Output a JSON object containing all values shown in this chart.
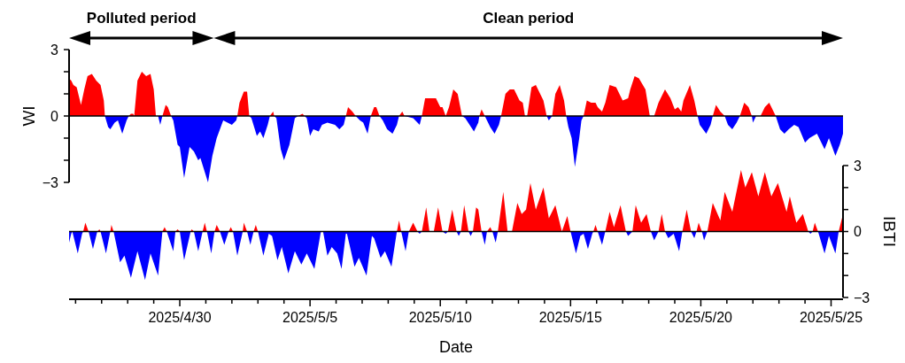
{
  "chart_data": [
    {
      "type": "area",
      "ylabel": "WI",
      "annotations": [
        "Polluted period",
        "Clean period"
      ],
      "tick_labels": "y",
      "xlim": [
        "2025-04-25T18:00",
        "2025-05-25T11:00"
      ],
      "ylim": [
        -3,
        3
      ],
      "yticks": [
        {
          "value": -3,
          "label": "−3"
        },
        {
          "value": -2,
          "label": null
        },
        {
          "value": -1,
          "label": null
        },
        0,
        {
          "value": 1,
          "label": null
        },
        {
          "value": 2,
          "label": null
        },
        3
      ],
      "x": [
        "2025-04-25T18:00",
        "2025-04-25T20:00",
        "2025-04-25T22:00",
        "2025-04-26T01:00",
        "2025-04-26T05:00",
        "2025-04-26T08:00",
        "2025-04-26T11:00",
        "2025-04-26T15:00",
        "2025-04-26T19:00",
        "2025-04-26T23:00",
        "2025-04-27T02:00",
        "2025-04-27T03:00",
        "2025-04-27T06:00",
        "2025-04-27T08:00",
        "2025-04-27T12:00",
        "2025-04-27T15:00",
        "2025-04-27T19:00",
        "2025-04-27T23:00",
        "2025-04-28T01:00",
        "2025-04-28T03:00",
        "2025-04-28T05:00",
        "2025-04-28T06:00",
        "2025-04-28T09:00",
        "2025-04-28T13:00",
        "2025-04-28T17:00",
        "2025-04-28T21:00",
        "2025-04-29T00:00",
        "2025-04-29T02:00",
        "2025-04-29T04:00",
        "2025-04-29T06:00",
        "2025-04-29T08:00",
        "2025-04-29T11:00",
        "2025-04-29T13:00",
        "2025-04-29T16:00",
        "2025-04-29T18:00",
        "2025-04-29T22:00",
        "2025-04-30T00:00",
        "2025-04-30T04:00",
        "2025-04-30T09:00",
        "2025-04-30T13:00",
        "2025-04-30T17:00",
        "2025-04-30T19:00",
        "2025-05-01T02:00",
        "2025-05-01T06:00",
        "2025-05-01T10:00",
        "2025-05-01T16:00",
        "2025-05-01T20:00",
        "2025-05-02T00:00",
        "2025-05-02T04:00",
        "2025-05-02T05:00",
        "2025-05-02T07:00",
        "2025-05-02T11:00",
        "2025-05-02T14:00",
        "2025-05-02T16:00",
        "2025-05-02T18:00",
        "2025-05-02T23:00",
        "2025-05-03T02:00",
        "2025-05-03T05:00",
        "2025-05-03T09:00",
        "2025-05-03T11:00",
        "2025-05-03T14:00",
        "2025-05-03T15:00",
        "2025-05-03T17:00",
        "2025-05-03T21:00",
        "2025-05-04T00:00",
        "2025-05-04T05:00",
        "2025-05-04T10:00",
        "2025-05-04T13:00",
        "2025-05-04T17:00",
        "2025-05-04T19:00",
        "2025-05-04T21:00",
        "2025-05-05T00:00",
        "2025-05-05T03:00",
        "2025-05-05T08:00",
        "2025-05-05T11:00",
        "2025-05-05T16:00",
        "2025-05-05T23:00",
        "2025-05-06T03:00",
        "2025-05-06T07:00",
        "2025-05-06T09:00",
        "2025-05-06T11:00",
        "2025-05-06T15:00",
        "2025-05-06T18:00",
        "2025-05-06T22:00",
        "2025-05-07T01:00",
        "2025-05-07T05:00",
        "2025-05-07T08:00",
        "2025-05-07T11:00",
        "2025-05-07T13:00",
        "2025-05-07T16:00",
        "2025-05-07T19:00",
        "2025-05-07T23:00",
        "2025-05-08T04:00",
        "2025-05-08T08:00",
        "2025-05-08T10:00",
        "2025-05-08T13:00",
        "2025-05-08T15:00",
        "2025-05-08T23:00",
        "2025-05-09T05:00",
        "2025-05-09T07:00",
        "2025-05-09T10:00",
        "2025-05-09T14:00",
        "2025-05-09T20:00",
        "2025-05-10T00:00",
        "2025-05-10T02:00",
        "2025-05-10T05:00",
        "2025-05-10T08:00",
        "2025-05-10T12:00",
        "2025-05-10T16:00",
        "2025-05-10T20:00",
        "2025-05-10T23:00",
        "2025-05-11T03:00",
        "2025-05-11T07:00",
        "2025-05-11T11:00",
        "2025-05-11T12:00",
        "2025-05-11T14:00",
        "2025-05-11T17:00",
        "2025-05-11T22:00",
        "2025-05-12T02:00",
        "2025-05-12T06:00",
        "2025-05-12T08:00",
        "2025-05-12T12:00",
        "2025-05-12T16:00",
        "2025-05-12T20:00",
        "2025-05-13T01:00",
        "2025-05-13T04:00",
        "2025-05-13T06:00",
        "2025-05-13T08:00",
        "2025-05-13T12:00",
        "2025-05-13T16:00",
        "2025-05-13T23:00",
        "2025-05-14T02:00",
        "2025-05-14T04:00",
        "2025-05-14T07:00",
        "2025-05-14T10:00",
        "2025-05-14T14:00",
        "2025-05-14T18:00",
        "2025-05-14T20:00",
        "2025-05-14T22:00",
        "2025-05-15T01:00",
        "2025-05-15T04:00",
        "2025-05-15T08:00",
        "2025-05-15T10:00",
        "2025-05-15T12:00",
        "2025-05-15T15:00",
        "2025-05-15T19:00",
        "2025-05-15T23:00",
        "2025-05-16T01:00",
        "2025-05-16T05:00",
        "2025-05-16T08:00",
        "2025-05-16T12:00",
        "2025-05-16T18:00",
        "2025-05-16T22:00",
        "2025-05-17T00:00",
        "2025-05-17T05:00",
        "2025-05-17T07:00",
        "2025-05-17T11:00",
        "2025-05-17T15:00",
        "2025-05-17T21:00",
        "2025-05-18T00:00",
        "2025-05-18T01:00",
        "2025-05-18T05:00",
        "2025-05-18T09:00",
        "2025-05-18T15:00",
        "2025-05-18T20:00",
        "2025-05-19T00:00",
        "2025-05-19T03:00",
        "2025-05-19T06:00",
        "2025-05-19T08:00",
        "2025-05-19T14:00",
        "2025-05-19T18:00",
        "2025-05-19T21:00",
        "2025-05-19T23:00",
        "2025-05-20T05:00",
        "2025-05-20T09:00",
        "2025-05-20T11:00",
        "2025-05-20T14:00",
        "2025-05-20T18:00",
        "2025-05-20T22:00",
        "2025-05-21T01:00",
        "2025-05-21T05:00",
        "2025-05-21T09:00",
        "2025-05-21T12:00",
        "2025-05-21T16:00",
        "2025-05-21T20:00",
        "2025-05-21T23:00",
        "2025-05-22T00:00",
        "2025-05-22T03:00",
        "2025-05-22T07:00",
        "2025-05-22T11:00",
        "2025-05-22T15:00",
        "2025-05-22T19:00",
        "2025-05-22T21:00",
        "2025-05-23T01:00",
        "2025-05-23T05:00",
        "2025-05-23T09:00",
        "2025-05-23T14:00",
        "2025-05-23T18:00",
        "2025-05-24T00:00",
        "2025-05-24T04:00",
        "2025-05-24T11:00",
        "2025-05-24T18:00",
        "2025-05-24T22:00",
        "2025-05-25T04:00",
        "2025-05-25T08:00",
        "2025-05-25T11:00"
      ],
      "series": [
        {
          "color": "#ff0000",
          "values": [
            1.7,
            1.6,
            1.4,
            1.3,
            0.5,
            1.2,
            1.8,
            1.9,
            1.6,
            1.4,
            0.7,
            0,
            0,
            0,
            0,
            0,
            0,
            0,
            0,
            0.1,
            0.1,
            0,
            1.6,
            2.0,
            1.8,
            1.9,
            1.2,
            0,
            0,
            0,
            0,
            0.5,
            0.4,
            0,
            0,
            0,
            0,
            0,
            0,
            0,
            0,
            0,
            0,
            0,
            0,
            0,
            0,
            0,
            0,
            0,
            0.6,
            1.1,
            1.1,
            0,
            0,
            0,
            0,
            0,
            0,
            0,
            0.2,
            0,
            0,
            0,
            0,
            0,
            0,
            0,
            0.1,
            0,
            0,
            0,
            0,
            0,
            0,
            0,
            0,
            0,
            0,
            0,
            0.4,
            0.2,
            0,
            0,
            0,
            0,
            0,
            0.4,
            0.4,
            0,
            0,
            0,
            0,
            0,
            0,
            0.2,
            0,
            0,
            0,
            0,
            0.8,
            0.8,
            0.8,
            0.4,
            0.4,
            0,
            0.4,
            1.2,
            1.0,
            0,
            0,
            0,
            0,
            0,
            0,
            0.3,
            0,
            0,
            0,
            0,
            0,
            1.0,
            1.2,
            1.2,
            0.7,
            0.6,
            0,
            0,
            1.3,
            1.4,
            0.7,
            0,
            0,
            0,
            1.0,
            1.4,
            0.7,
            0,
            0,
            0,
            0,
            0,
            0,
            0,
            0.7,
            0.6,
            0.6,
            0.4,
            0.2,
            0.6,
            1.4,
            1.3,
            0.9,
            0.7,
            0.8,
            1.2,
            1.8,
            1.7,
            1.2,
            0.3,
            0,
            0,
            0.6,
            1.2,
            0.8,
            0.3,
            0.4,
            0.2,
            0.7,
            1.4,
            0.7,
            0,
            0,
            0,
            0,
            0,
            0.5,
            0.2,
            0,
            0,
            0,
            0,
            0,
            0.6,
            0.4,
            0,
            0,
            0,
            0,
            0.4,
            0.6,
            0.2,
            0,
            0,
            0,
            0,
            0,
            0,
            0,
            0,
            0,
            0,
            0,
            0,
            0,
            0
          ]
        },
        {
          "color": "#0000ff",
          "values": [
            0,
            0,
            0,
            0,
            0,
            0,
            0,
            0,
            0,
            0,
            0,
            0,
            -0.5,
            -0.6,
            -0.3,
            -0.2,
            -0.8,
            -0.2,
            0,
            0,
            0,
            0,
            0,
            0,
            0,
            0,
            0,
            0,
            0,
            -0.4,
            0,
            0,
            0,
            0,
            -0.2,
            -1.3,
            -1.4,
            -2.8,
            -1.4,
            -1.6,
            -2.0,
            -1.9,
            -3.0,
            -1.8,
            -1.0,
            -0.2,
            -0.3,
            -0.4,
            -0.2,
            0,
            0,
            0,
            0,
            0,
            -0.1,
            -0.9,
            -0.7,
            -1.0,
            -0.4,
            0,
            0,
            0,
            -0.1,
            -1.5,
            -2.0,
            -1.3,
            -0.1,
            0,
            0,
            0,
            -0.1,
            -0.9,
            -0.6,
            -0.7,
            -0.4,
            -0.3,
            -0.4,
            -0.6,
            -0.4,
            0,
            0,
            0,
            0,
            -0.2,
            -0.3,
            -0.8,
            0,
            0,
            0,
            0,
            -0.2,
            -0.6,
            -0.8,
            -0.4,
            0,
            0,
            0,
            -0.1,
            -0.4,
            0,
            0,
            0,
            0,
            0,
            0,
            0,
            0,
            0,
            0,
            0,
            -0.1,
            -0.4,
            -0.7,
            -0.3,
            0,
            0,
            0,
            -0.5,
            -0.8,
            -0.4,
            0,
            0,
            0,
            0,
            0,
            0,
            0,
            0,
            0,
            0,
            0,
            0,
            -0.2,
            0,
            0,
            0,
            0,
            0,
            -0.5,
            -1.0,
            -2.3,
            -1.0,
            -0.2,
            0,
            0,
            0,
            0,
            0,
            0,
            0,
            0,
            0,
            0,
            0,
            0,
            0,
            0,
            0,
            0,
            0,
            0,
            0,
            0,
            0,
            0,
            0,
            0,
            0,
            0,
            0,
            0,
            0,
            -0.4,
            -0.8,
            -0.4,
            0,
            0,
            0,
            0,
            -0.4,
            -0.6,
            -0.3,
            0,
            0,
            0,
            0,
            -0.3,
            0,
            0,
            0,
            0,
            0,
            0,
            -0.6,
            -0.8,
            -0.6,
            -0.4,
            -0.5,
            -1.2,
            -1.0,
            -0.8,
            -1.5,
            -1.0,
            -1.8,
            -1.3,
            -0.8
          ]
        }
      ]
    },
    {
      "type": "area",
      "y2label": "IBTI",
      "xlabel": "Date",
      "xlim": [
        "2025-04-25T18:00",
        "2025-05-25T11:00"
      ],
      "xticks": [
        {
          "value": "2025-04-26",
          "label": null
        },
        {
          "value": "2025-04-27",
          "label": null
        },
        {
          "value": "2025-04-28",
          "label": null
        },
        {
          "value": "2025-04-29",
          "label": null
        },
        {
          "value": "2025-04-30",
          "label": "2025/4/30"
        },
        {
          "value": "2025-05-01",
          "label": null
        },
        {
          "value": "2025-05-02",
          "label": null
        },
        {
          "value": "2025-05-03",
          "label": null
        },
        {
          "value": "2025-05-04",
          "label": null
        },
        {
          "value": "2025-05-05",
          "label": "2025/5/5"
        },
        {
          "value": "2025-05-06",
          "label": null
        },
        {
          "value": "2025-05-07",
          "label": null
        },
        {
          "value": "2025-05-08",
          "label": null
        },
        {
          "value": "2025-05-09",
          "label": null
        },
        {
          "value": "2025-05-10",
          "label": "2025/5/10"
        },
        {
          "value": "2025-05-11",
          "label": null
        },
        {
          "value": "2025-05-12",
          "label": null
        },
        {
          "value": "2025-05-13",
          "label": null
        },
        {
          "value": "2025-05-14",
          "label": null
        },
        {
          "value": "2025-05-15",
          "label": "2025/5/15"
        },
        {
          "value": "2025-05-16",
          "label": null
        },
        {
          "value": "2025-05-17",
          "label": null
        },
        {
          "value": "2025-05-18",
          "label": null
        },
        {
          "value": "2025-05-19",
          "label": null
        },
        {
          "value": "2025-05-20",
          "label": "2025/5/20"
        },
        {
          "value": "2025-05-21",
          "label": null
        },
        {
          "value": "2025-05-22",
          "label": null
        },
        {
          "value": "2025-05-23",
          "label": null
        },
        {
          "value": "2025-05-24",
          "label": null
        },
        {
          "value": "2025-05-25",
          "label": "2025/5/25"
        }
      ],
      "y2lim": [
        -3,
        3
      ],
      "y2ticks": [
        {
          "value": -3,
          "label": "−3"
        },
        {
          "value": -2,
          "label": null
        },
        {
          "value": -1,
          "label": null
        },
        0,
        {
          "value": 1,
          "label": null
        },
        {
          "value": 2,
          "label": null
        },
        3
      ],
      "x": [
        "2025-04-25T18:00",
        "2025-04-25T20:00",
        "2025-04-25T21:00",
        "2025-04-26T02:00",
        "2025-04-26T06:00",
        "2025-04-26T07:00",
        "2025-04-26T09:00",
        "2025-04-26T12:00",
        "2025-04-26T16:00",
        "2025-04-26T20:00",
        "2025-04-26T22:00",
        "2025-04-26T23:00",
        "2025-04-27T04:00",
        "2025-04-27T08:00",
        "2025-04-27T09:00",
        "2025-04-27T11:00",
        "2025-04-27T17:00",
        "2025-04-27T21:00",
        "2025-04-28T03:00",
        "2025-04-28T09:00",
        "2025-04-28T16:00",
        "2025-04-28T21:00",
        "2025-04-29T04:00",
        "2025-04-29T08:00",
        "2025-04-29T10:00",
        "2025-04-29T12:00",
        "2025-04-29T18:00",
        "2025-04-29T20:00",
        "2025-04-29T22:00",
        "2025-04-30T00:00",
        "2025-04-30T04:00",
        "2025-04-30T10:00",
        "2025-04-30T11:00",
        "2025-04-30T13:00",
        "2025-04-30T17:00",
        "2025-04-30T21:00",
        "2025-04-30T23:00",
        "2025-05-01T01:00",
        "2025-05-01T05:00",
        "2025-05-01T08:00",
        "2025-05-01T10:00",
        "2025-05-01T13:00",
        "2025-05-01T17:00",
        "2025-05-01T21:00",
        "2025-05-01T23:00",
        "2025-05-02T01:00",
        "2025-05-02T05:00",
        "2025-05-02T10:00",
        "2025-05-02T11:00",
        "2025-05-02T14:00",
        "2025-05-02T17:00",
        "2025-05-02T20:00",
        "2025-05-02T22:00",
        "2025-05-03T00:00",
        "2025-05-03T05:00",
        "2025-05-03T10:00",
        "2025-05-03T13:00",
        "2025-05-03T18:00",
        "2025-05-03T22:00",
        "2025-05-04T04:00",
        "2025-05-04T10:00",
        "2025-05-04T16:00",
        "2025-05-04T21:00",
        "2025-05-05T04:00",
        "2025-05-05T10:00",
        "2025-05-05T12:00",
        "2025-05-05T16:00",
        "2025-05-05T20:00",
        "2025-05-06T01:00",
        "2025-05-06T05:00",
        "2025-05-06T09:00",
        "2025-05-06T10:00",
        "2025-05-06T17:00",
        "2025-05-06T21:00",
        "2025-05-07T04:00",
        "2025-05-07T09:00",
        "2025-05-07T11:00",
        "2025-05-07T17:00",
        "2025-05-07T21:00",
        "2025-05-08T03:00",
        "2025-05-08T08:00",
        "2025-05-08T10:00",
        "2025-05-08T12:00",
        "2025-05-08T16:00",
        "2025-05-08T19:00",
        "2025-05-08T23:00",
        "2025-05-09T02:00",
        "2025-05-09T03:00",
        "2025-05-09T05:00",
        "2025-05-09T07:00",
        "2025-05-09T11:00",
        "2025-05-09T14:00",
        "2025-05-09T18:00",
        "2025-05-09T22:00",
        "2025-05-10T02:00",
        "2025-05-10T05:00",
        "2025-05-10T07:00",
        "2025-05-10T11:00",
        "2025-05-10T15:00",
        "2025-05-10T17:00",
        "2025-05-10T19:00",
        "2025-05-10T22:00",
        "2025-05-11T02:00",
        "2025-05-11T04:00",
        "2025-05-11T06:00",
        "2025-05-11T09:00",
        "2025-05-11T11:00",
        "2025-05-11T14:00",
        "2025-05-11T17:00",
        "2025-05-11T19:00",
        "2025-05-11T22:00",
        "2025-05-12T00:00",
        "2025-05-12T03:00",
        "2025-05-12T05:00",
        "2025-05-12T10:00",
        "2025-05-12T14:00",
        "2025-05-12T18:00",
        "2025-05-12T23:00",
        "2025-05-13T03:00",
        "2025-05-13T07:00",
        "2025-05-13T11:00",
        "2025-05-13T16:00",
        "2025-05-13T23:00",
        "2025-05-14T04:00",
        "2025-05-14T10:00",
        "2025-05-14T16:00",
        "2025-05-14T21:00",
        "2025-05-15T00:00",
        "2025-05-15T05:00",
        "2025-05-15T09:00",
        "2025-05-15T12:00",
        "2025-05-15T16:00",
        "2025-05-15T20:00",
        "2025-05-15T21:00",
        "2025-05-15T23:00",
        "2025-05-16T01:00",
        "2025-05-16T05:00",
        "2025-05-16T08:00",
        "2025-05-16T12:00",
        "2025-05-16T16:00",
        "2025-05-16T22:00",
        "2025-05-17T03:00",
        "2025-05-17T05:00",
        "2025-05-17T09:00",
        "2025-05-17T12:00",
        "2025-05-17T17:00",
        "2025-05-17T22:00",
        "2025-05-18T02:00",
        "2025-05-18T05:00",
        "2025-05-18T09:00",
        "2025-05-18T12:00",
        "2025-05-18T15:00",
        "2025-05-18T18:00",
        "2025-05-18T23:00",
        "2025-05-19T04:00",
        "2025-05-19T07:00",
        "2025-05-19T11:00",
        "2025-05-19T15:00",
        "2025-05-19T18:00",
        "2025-05-19T20:00",
        "2025-05-19T22:00",
        "2025-05-20T01:00",
        "2025-05-20T03:00",
        "2025-05-20T06:00",
        "2025-05-20T11:00",
        "2025-05-20T18:00",
        "2025-05-20T22:00",
        "2025-05-21T05:00",
        "2025-05-21T13:00",
        "2025-05-21T17:00",
        "2025-05-21T23:00",
        "2025-05-22T05:00",
        "2025-05-22T11:00",
        "2025-05-22T17:00",
        "2025-05-22T23:00",
        "2025-05-23T07:00",
        "2025-05-23T10:00",
        "2025-05-23T16:00",
        "2025-05-23T22:00",
        "2025-05-24T03:00",
        "2025-05-24T05:00",
        "2025-05-24T07:00",
        "2025-05-24T09:00",
        "2025-05-24T12:00",
        "2025-05-24T18:00",
        "2025-05-24T22:00",
        "2025-05-25T04:00",
        "2025-05-25T07:00",
        "2025-05-25T11:00"
      ],
      "series": [
        {
          "color": "#ff0000",
          "axis": "y2",
          "values": [
            0,
            0,
            0,
            0,
            0,
            0,
            0.4,
            0,
            0,
            0,
            0.1,
            0,
            0,
            0,
            0.3,
            0,
            0,
            0,
            0,
            0,
            0,
            0,
            0,
            0,
            0.2,
            0,
            0,
            0,
            0.1,
            0,
            0,
            0,
            0.1,
            0,
            0,
            0,
            0.4,
            0,
            0,
            0,
            0.3,
            0,
            0,
            0,
            0.2,
            0,
            0,
            0,
            0.4,
            0,
            0,
            0,
            0.3,
            0,
            0,
            0,
            0,
            0,
            0,
            0,
            0,
            0,
            0,
            0,
            0,
            0,
            0,
            0,
            0,
            0,
            0,
            0,
            0,
            0,
            0,
            0,
            0,
            0,
            0,
            0,
            0,
            0.5,
            0,
            0,
            0,
            0.4,
            0.1,
            0,
            0,
            0,
            1.1,
            0,
            0,
            1.1,
            0,
            0,
            0,
            1.0,
            0,
            0,
            0,
            1.2,
            0,
            0,
            0,
            1.1,
            1.0,
            0,
            0,
            0,
            0.2,
            0,
            0,
            0,
            1.8,
            0,
            0,
            1.3,
            0.8,
            1.0,
            2.2,
            1.0,
            2.0,
            0.6,
            1.2,
            0,
            0.7,
            0,
            0,
            0,
            0,
            0,
            0,
            0,
            0.3,
            0,
            0,
            0,
            0.9,
            0.2,
            1.2,
            0,
            0,
            0,
            1.2,
            0.4,
            0.8,
            0,
            0,
            0,
            0.8,
            0,
            0,
            0,
            0,
            0,
            1.0,
            0,
            0,
            0,
            0.4,
            0,
            0,
            0,
            1.3,
            0.5,
            1.8,
            0.9,
            2.8,
            2.0,
            2.7,
            1.6,
            2.7,
            1.6,
            2.2,
            0.9,
            1.6,
            0.4,
            0.8,
            0,
            0,
            0,
            0.4,
            0,
            0,
            0,
            0,
            0,
            0.8
          ]
        },
        {
          "color": "#0000ff",
          "axis": "y2",
          "values": [
            -0.5,
            -0.1,
            0,
            -1.0,
            -0.1,
            0,
            0,
            0,
            -0.8,
            0,
            0,
            0,
            -1.0,
            0,
            0,
            0,
            -1.4,
            -1.1,
            -2.1,
            -0.9,
            -2.2,
            -1.0,
            -2.0,
            0,
            0,
            0,
            -0.9,
            0,
            0,
            0,
            -1.3,
            0,
            0,
            0,
            -0.9,
            0,
            0,
            0,
            -1.0,
            0,
            0,
            0,
            -0.6,
            0,
            0,
            0,
            -1.1,
            0,
            0,
            0,
            -0.6,
            0,
            0,
            0,
            -1.1,
            -0.1,
            -0.2,
            -1.3,
            -0.7,
            -1.9,
            -0.9,
            -1.5,
            -1.0,
            -1.7,
            0,
            0,
            -1.1,
            -0.7,
            -1.0,
            -1.7,
            -0.1,
            -0.1,
            -1.6,
            -1.2,
            -2.0,
            -0.2,
            -0.3,
            -1.2,
            -0.9,
            -1.6,
            0,
            0,
            0,
            -0.9,
            0,
            0,
            0,
            0,
            -0.1,
            0,
            0,
            0,
            0,
            0,
            0,
            -0.1,
            0,
            0,
            0,
            -0.2,
            0,
            0,
            0,
            -0.2,
            0,
            0,
            0,
            0,
            -0.6,
            0,
            0,
            0,
            -0.5,
            0,
            0,
            0,
            0,
            0,
            0,
            0,
            0,
            0,
            0,
            0,
            0,
            0,
            0,
            0,
            -1.0,
            -0.2,
            -0.1,
            -0.8,
            -0.1,
            0,
            0,
            0,
            -0.6,
            0,
            0,
            0,
            0,
            0,
            -0.2,
            0,
            0,
            0,
            0,
            0,
            -0.4,
            0,
            0,
            0,
            -0.3,
            -0.1,
            -0.9,
            0,
            0,
            0,
            -0.3,
            0,
            0,
            0,
            -0.4,
            0,
            0,
            0,
            0,
            0,
            0,
            0,
            0,
            0,
            0,
            0,
            0,
            0,
            0,
            0,
            0,
            0,
            -0.1,
            0,
            0,
            0,
            -1.0,
            -0.2,
            -1.0,
            0,
            0
          ]
        }
      ]
    }
  ]
}
